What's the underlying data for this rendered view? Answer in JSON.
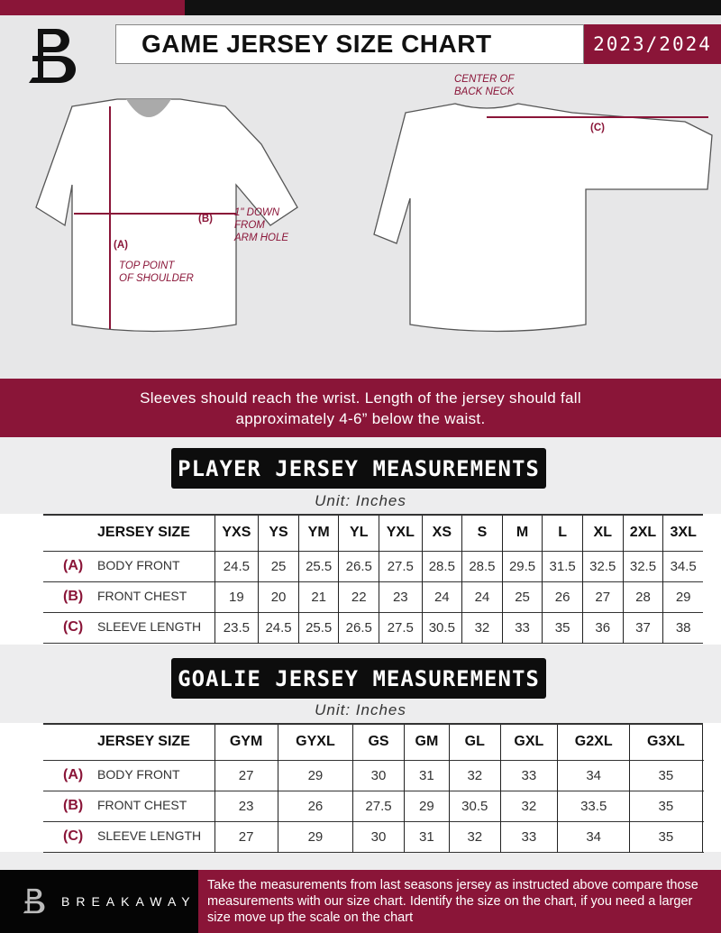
{
  "header": {
    "title": "GAME JERSEY SIZE CHART",
    "season": "2023/2024"
  },
  "diagram": {
    "front_notes": {
      "a_label": "(A)",
      "a_text_1": "TOP POINT",
      "a_text_2": "OF SHOULDER",
      "b_label": "(B)",
      "b_text_1": "1\" DOWN",
      "b_text_2": "FROM",
      "b_text_3": "ARM HOLE"
    },
    "back_notes": {
      "c_label": "(C)",
      "c_text_1": "CENTER OF",
      "c_text_2": "BACK NECK"
    }
  },
  "band": {
    "line1": "Sleeves should reach the wrist. Length of the jersey should fall",
    "line2": "approximately 4-6” below the waist."
  },
  "player": {
    "title": "PLAYER JERSEY MEASUREMENTS",
    "unit": "Unit: Inches",
    "header_label": "JERSEY SIZE",
    "sizes": [
      "YXS",
      "YS",
      "YM",
      "YL",
      "YXL",
      "XS",
      "S",
      "M",
      "L",
      "XL",
      "2XL",
      "3XL"
    ],
    "rows": [
      {
        "letter": "(A)",
        "label": "BODY FRONT",
        "values": [
          "24.5",
          "25",
          "25.5",
          "26.5",
          "27.5",
          "28.5",
          "28.5",
          "29.5",
          "31.5",
          "32.5",
          "32.5",
          "34.5"
        ]
      },
      {
        "letter": "(B)",
        "label": "FRONT CHEST",
        "values": [
          "19",
          "20",
          "21",
          "22",
          "23",
          "24",
          "24",
          "25",
          "26",
          "27",
          "28",
          "29"
        ]
      },
      {
        "letter": "(C)",
        "label": "SLEEVE LENGTH",
        "values": [
          "23.5",
          "24.5",
          "25.5",
          "26.5",
          "27.5",
          "30.5",
          "32",
          "33",
          "35",
          "36",
          "37",
          "38"
        ]
      }
    ]
  },
  "goalie": {
    "title": "GOALIE JERSEY MEASUREMENTS",
    "unit": "Unit: Inches",
    "header_label": "JERSEY SIZE",
    "sizes": [
      "GYM",
      "GYXL",
      "GS",
      "GM",
      "GL",
      "GXL",
      "G2XL",
      "G3XL",
      ""
    ],
    "rows": [
      {
        "letter": "(A)",
        "label": "BODY FRONT",
        "values": [
          "27",
          "29",
          "30",
          "31",
          "32",
          "33",
          "34",
          "35",
          ""
        ]
      },
      {
        "letter": "(B)",
        "label": "FRONT CHEST",
        "values": [
          "23",
          "26",
          "27.5",
          "29",
          "30.5",
          "32",
          "33.5",
          "35",
          ""
        ]
      },
      {
        "letter": "(C)",
        "label": "SLEEVE LENGTH",
        "values": [
          "27",
          "29",
          "30",
          "31",
          "32",
          "33",
          "34",
          "35",
          ""
        ]
      }
    ]
  },
  "footer": {
    "brand": "BREAKAWAY",
    "text": "Take the measurements from last seasons jersey as instructed above compare those measurements  with our size chart. Identify the size on the chart, if you need a larger size move up the scale on the chart"
  },
  "colors": {
    "accent": "#8a1538",
    "dark": "#0d0d0d",
    "background": "#e7e7e8"
  }
}
